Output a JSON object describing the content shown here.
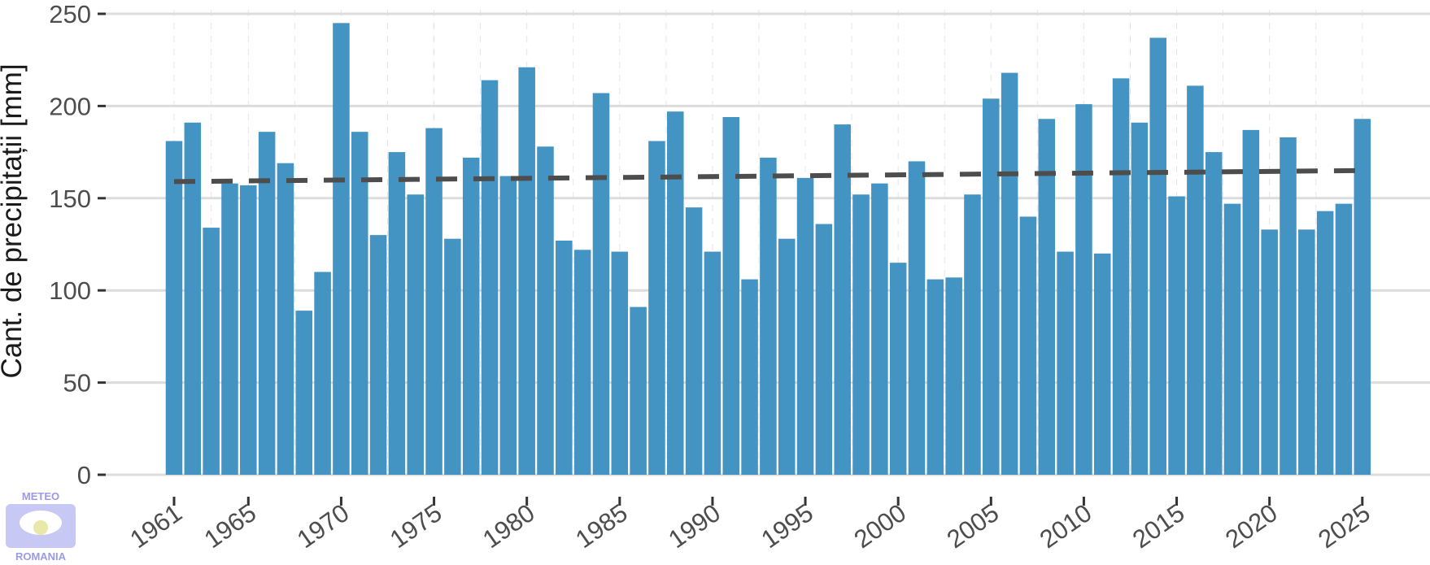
{
  "chart_data": {
    "type": "bar",
    "ylabel": "Cant. de precipitații [mm]",
    "ylim": [
      0,
      250
    ],
    "yticks": [
      0,
      50,
      100,
      150,
      200,
      250
    ],
    "xticks": [
      1961,
      1965,
      1970,
      1975,
      1980,
      1985,
      1990,
      1995,
      2000,
      2005,
      2010,
      2015,
      2020,
      2025
    ],
    "x": [
      1961,
      1962,
      1963,
      1964,
      1965,
      1966,
      1967,
      1968,
      1969,
      1970,
      1971,
      1972,
      1973,
      1974,
      1975,
      1976,
      1977,
      1978,
      1979,
      1980,
      1981,
      1982,
      1983,
      1984,
      1985,
      1986,
      1987,
      1988,
      1989,
      1990,
      1991,
      1992,
      1993,
      1994,
      1995,
      1996,
      1997,
      1998,
      1999,
      2000,
      2001,
      2002,
      2003,
      2004,
      2005,
      2006,
      2007,
      2008,
      2009,
      2010,
      2011,
      2012,
      2013,
      2014,
      2015,
      2016,
      2017,
      2018,
      2019,
      2020,
      2021,
      2022,
      2023,
      2024,
      2025
    ],
    "values": [
      181,
      191,
      134,
      158,
      157,
      186,
      169,
      89,
      110,
      245,
      186,
      130,
      175,
      152,
      188,
      128,
      172,
      214,
      162,
      221,
      178,
      127,
      122,
      207,
      121,
      91,
      181,
      197,
      145,
      121,
      194,
      106,
      172,
      128,
      161,
      136,
      190,
      152,
      158,
      115,
      170,
      106,
      107,
      152,
      204,
      218,
      140,
      193,
      121,
      201,
      120,
      215,
      191,
      237,
      151,
      211,
      175,
      147,
      187,
      133,
      183,
      133,
      143,
      147,
      193
    ],
    "bar_color": "#4393c3",
    "trend": {
      "style": "dashed",
      "color": "#4d4d4d",
      "start": [
        1961,
        159
      ],
      "end": [
        2025,
        165
      ]
    },
    "grid": true
  },
  "logo": {
    "top_text": "METEO",
    "bottom_text": "ROMANIA"
  }
}
